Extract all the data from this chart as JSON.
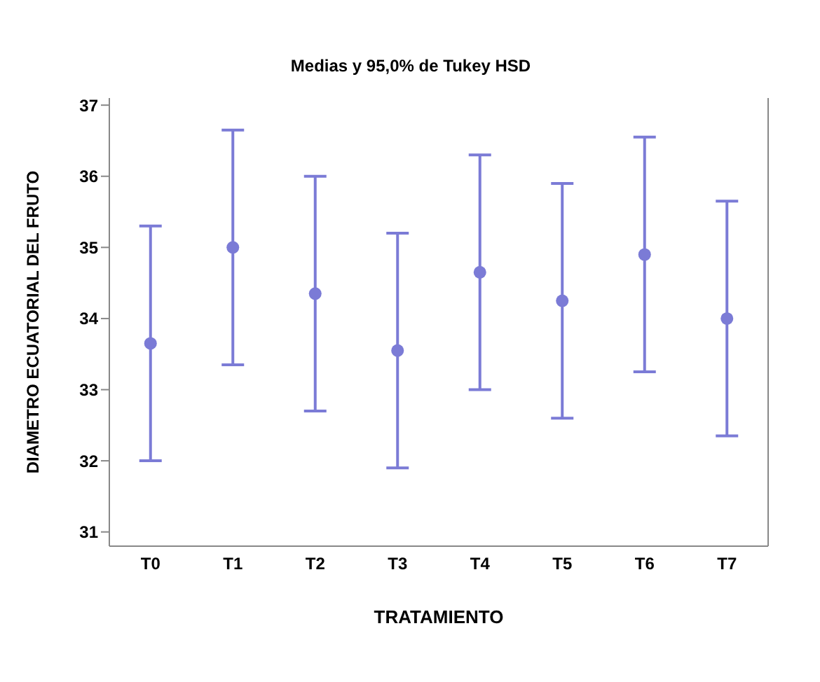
{
  "chart_data": {
    "type": "scatter",
    "title": "Medias y 95,0% de Tukey HSD",
    "xlabel": "TRATAMIENTO",
    "ylabel": "DIAMETRO ECUATORIAL DEL FRUTO",
    "categories": [
      "T0",
      "T1",
      "T2",
      "T3",
      "T4",
      "T5",
      "T6",
      "T7"
    ],
    "values": [
      33.65,
      35.0,
      34.35,
      33.55,
      34.65,
      34.25,
      34.9,
      34.0
    ],
    "errors": [
      1.65,
      1.65,
      1.65,
      1.65,
      1.65,
      1.65,
      1.65,
      1.65
    ],
    "color": "#7b7bd6",
    "marker": "circle",
    "ylim": [
      30.8,
      37.1
    ],
    "yticks": [
      31,
      32,
      33,
      34,
      35,
      36,
      37
    ],
    "grid": false,
    "legend": false
  }
}
